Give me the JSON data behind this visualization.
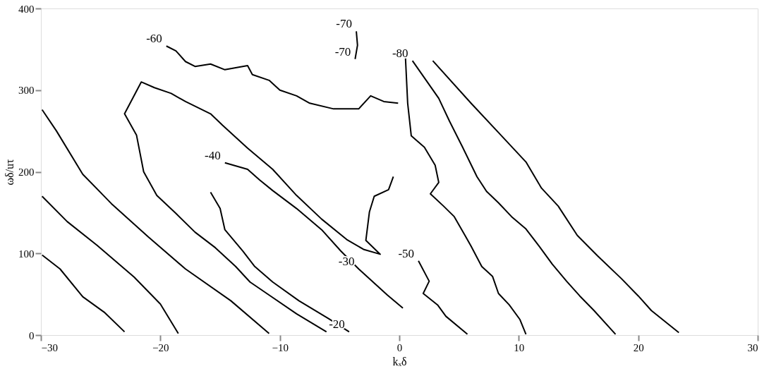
{
  "chart_data": {
    "type": "line",
    "xlabel": "kₓδ",
    "ylabel": "ωδ/uτ",
    "xlim": [
      -30,
      30
    ],
    "xticks": [
      -30,
      -20,
      -10,
      0,
      10,
      20,
      30
    ],
    "ylim": [
      0,
      400
    ],
    "yticks": [
      0,
      100,
      200,
      300,
      400
    ],
    "line_style": "solid",
    "series": [
      {
        "color": "#000000",
        "x": [
          -29.9,
          -28.4,
          -26.5,
          -24.7,
          -23.0
        ],
        "values": [
          98,
          81,
          47,
          28,
          4
        ]
      },
      {
        "color": "#000000",
        "x": [
          -29.9,
          -27.8,
          -25.3,
          -22.2,
          -20.0,
          -18.5
        ],
        "values": [
          170,
          139,
          110,
          71,
          38,
          2
        ]
      },
      {
        "color": "#000000",
        "x": [
          -29.9,
          -28.7,
          -26.5,
          -24.1,
          -21.0,
          -17.9,
          -14.1,
          -10.9
        ],
        "values": [
          276,
          250,
          197,
          161,
          120,
          81,
          42,
          2
        ]
      },
      {
        "color": "#000000",
        "x": [
          -6.1,
          -8.6,
          -10.9,
          -12.5,
          -13.7,
          -15.4,
          -17.1,
          -18.7,
          -20.3,
          -21.4,
          -22.0,
          -23.0,
          -21.6,
          -20.5,
          -19.1,
          -17.9,
          -15.8,
          -14.8,
          -12.7,
          -10.6,
          -8.6,
          -6.5,
          -4.4,
          -3.0,
          -1.6,
          -2.8,
          -2.5,
          -2.1,
          -0.9,
          -0.5
        ],
        "values": [
          4,
          26,
          49,
          65,
          84,
          107,
          126,
          149,
          171,
          200,
          245,
          271,
          310,
          303,
          296,
          286,
          271,
          257,
          229,
          203,
          171,
          142,
          117,
          105,
          99,
          116,
          151,
          170,
          178,
          194
        ]
      },
      {
        "color": "#000000",
        "x": [
          -15.8,
          -15.0,
          -14.6,
          -13.1,
          -12.1,
          -10.6,
          -8.4,
          -5.9,
          -4.2
        ],
        "values": [
          175,
          155,
          129,
          103,
          84,
          65,
          42,
          20,
          4
        ]
      },
      {
        "color": "#000000",
        "x": [
          -14.6,
          -12.7,
          -11.7,
          -10.6,
          -8.6,
          -6.5,
          -4.9,
          -3.4,
          -1.0,
          0.3
        ],
        "values": [
          211,
          203,
          190,
          177,
          155,
          129,
          103,
          81,
          49,
          33
        ]
      },
      {
        "color": "#000000",
        "x": [
          0.5,
          0.7,
          1.0,
          2.1,
          3.0,
          3.3,
          2.6,
          3.7,
          4.6,
          5.5,
          6.0,
          6.9,
          7.8,
          8.3,
          9.2,
          10.1,
          10.6
        ],
        "values": [
          344,
          284,
          244,
          230,
          208,
          187,
          173,
          158,
          145,
          122,
          109,
          84,
          72,
          51,
          37,
          19,
          1
        ]
      },
      {
        "color": "#000000",
        "x": [
          1.6,
          2.5,
          2.0,
          3.2,
          3.9,
          5.7
        ],
        "values": [
          91,
          66,
          51,
          37,
          23,
          1
        ]
      },
      {
        "color": "#000000",
        "x": [
          1.1,
          3.3,
          4.2,
          5.3,
          6.5,
          7.3,
          8.3,
          9.4,
          10.6,
          11.7,
          12.8,
          14.0,
          15.1,
          16.3,
          18.1
        ],
        "values": [
          336,
          290,
          262,
          230,
          194,
          176,
          162,
          145,
          130,
          109,
          87,
          66,
          48,
          30,
          1
        ]
      },
      {
        "color": "#000000",
        "x": [
          2.8,
          6.0,
          8.3,
          10.6,
          11.9,
          13.3,
          14.9,
          16.6,
          18.6,
          20.0,
          21.1,
          23.4
        ],
        "values": [
          336,
          284,
          248,
          212,
          180,
          158,
          122,
          97,
          69,
          48,
          30,
          3
        ]
      },
      {
        "color": "#000000",
        "x": [
          -3.6,
          -3.5,
          -3.7
        ],
        "values": [
          372,
          355,
          338
        ]
      },
      {
        "color": "#000000",
        "x": [
          -19.5,
          -18.7,
          -17.9,
          -17.1,
          -15.8,
          -14.6,
          -12.7,
          -12.3,
          -10.9,
          -10.0,
          -8.6,
          -7.5,
          -5.5,
          -3.4,
          -2.4,
          -1.3,
          -0.1
        ],
        "values": [
          354,
          348,
          335,
          329,
          332,
          325,
          330,
          319,
          312,
          300,
          293,
          284,
          277,
          277,
          293,
          286,
          284
        ]
      }
    ],
    "annotations": [
      {
        "text": "-60",
        "x": -19.5,
        "y": 354
      },
      {
        "text": "-70",
        "x": -3.6,
        "y": 372
      },
      {
        "text": "-70",
        "x": -3.7,
        "y": 338
      },
      {
        "text": "-80",
        "x": 1.1,
        "y": 336
      },
      {
        "text": "-40",
        "x": -14.6,
        "y": 211
      },
      {
        "text": "-30",
        "x": -3.4,
        "y": 81
      },
      {
        "text": "-50",
        "x": 1.6,
        "y": 91
      },
      {
        "text": "-20",
        "x": -4.2,
        "y": 4
      }
    ]
  }
}
